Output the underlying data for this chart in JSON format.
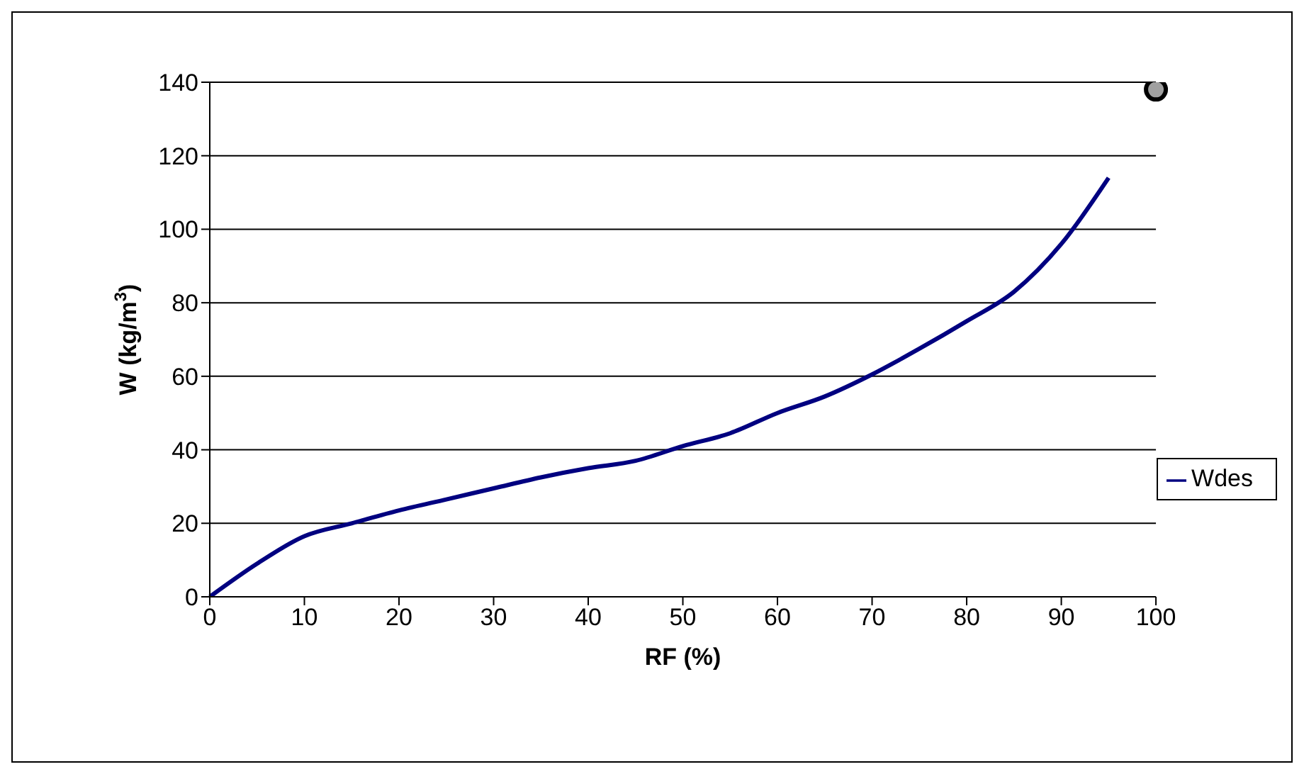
{
  "chart_data": {
    "type": "line",
    "xlabel": "RF (%)",
    "ylabel": "W (kg/m$^{3}$)",
    "xlim": [
      0,
      100
    ],
    "xticks": [
      0,
      10,
      20,
      30,
      40,
      50,
      60,
      70,
      80,
      90,
      100
    ],
    "ylim": [
      0,
      140
    ],
    "yticks": [
      0,
      20,
      40,
      60,
      80,
      100,
      120,
      140
    ],
    "grid": "y",
    "legend": "right",
    "marker": "none",
    "line_style": "solid",
    "series": [
      {
        "name": "Wdes",
        "color": "#000080",
        "x": [
          0,
          5,
          10,
          15,
          20,
          25,
          30,
          35,
          40,
          45,
          50,
          55,
          60,
          65,
          70,
          75,
          80,
          85,
          90,
          95
        ],
        "values": [
          0,
          9,
          16.5,
          20,
          23.5,
          26.5,
          29.5,
          32.5,
          35,
          37,
          41,
          44.5,
          50,
          54.5,
          60.5,
          67.5,
          75,
          83,
          96,
          114
        ]
      },
      {
        "type": "scatter",
        "color": "#a0a0a0",
        "marker": "circle",
        "x": [
          100
        ],
        "values": [
          138
        ]
      }
    ]
  }
}
